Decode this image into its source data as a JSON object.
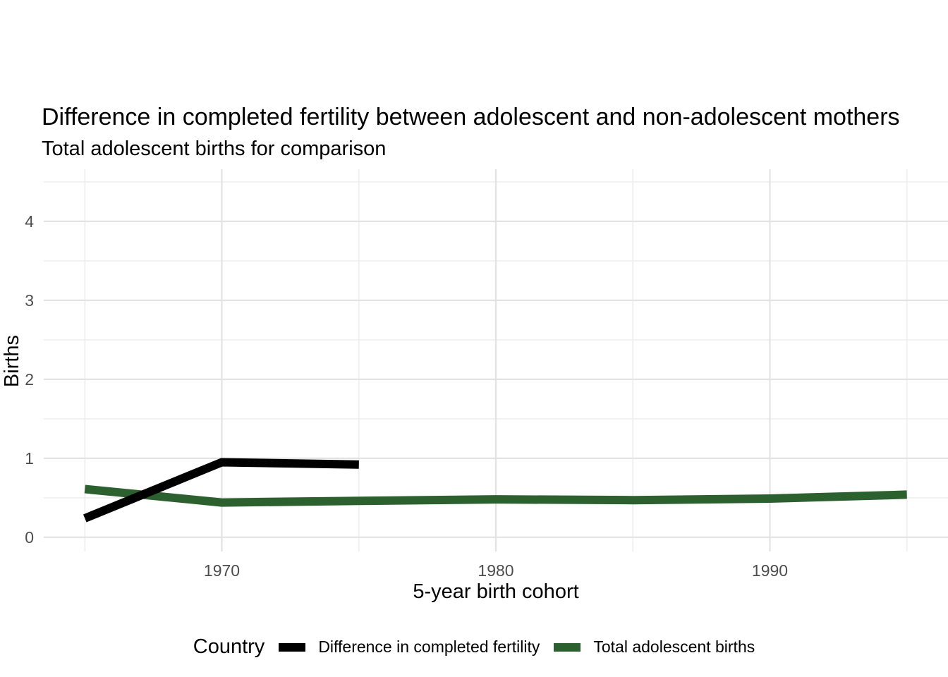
{
  "title": "Difference in completed fertility between adolescent and non-adolescent mothers",
  "subtitle": "Total adolescent births for comparison",
  "chart_data": {
    "type": "line",
    "title": "Difference in completed fertility between adolescent and non-adolescent mothers",
    "subtitle": "Total adolescent births for comparison",
    "xlabel": "5-year birth cohort",
    "ylabel": "Births",
    "legend_title": "Country",
    "legend_position": "bottom",
    "grid": true,
    "xlim": [
      1963.5,
      1996.5
    ],
    "ylim": [
      -0.18,
      4.66
    ],
    "x_ticks": [
      1970,
      1980,
      1990
    ],
    "x_minor": [
      1965,
      1975,
      1985,
      1995
    ],
    "y_ticks": [
      0,
      1,
      2,
      3,
      4
    ],
    "y_minor": [
      0.5,
      1.5,
      2.5,
      3.5,
      4.5
    ],
    "series": [
      {
        "name": "Difference in completed fertility",
        "color": "#000000",
        "x": [
          1965,
          1970,
          1975
        ],
        "values": [
          0.24,
          0.95,
          0.92
        ]
      },
      {
        "name": "Total adolescent births",
        "color": "#2c602f",
        "x": [
          1965,
          1970,
          1975,
          1980,
          1985,
          1990,
          1995
        ],
        "values": [
          0.61,
          0.44,
          0.46,
          0.48,
          0.47,
          0.49,
          0.54
        ]
      }
    ]
  },
  "colors": {
    "grid_major": "#e3e3e3",
    "grid_minor": "#efefef",
    "axis_text": "#4d4d4d"
  }
}
